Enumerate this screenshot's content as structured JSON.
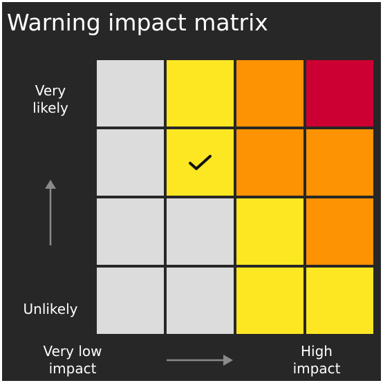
{
  "title": "Warning impact matrix",
  "axis": {
    "likelihood_top": "Very\nlikely",
    "likelihood_bottom": "Unlikely",
    "impact_left": "Very low\nimpact",
    "impact_right": "High\nimpact"
  },
  "colors": {
    "background": "#272727",
    "grey": "#dcdcdc",
    "yellow": "#fde723",
    "amber": "#fd9302",
    "red": "#cd0033",
    "arrow": "#8a8a8a"
  },
  "matrix": {
    "rows": [
      [
        "grey",
        "yellow",
        "amber",
        "red"
      ],
      [
        "grey",
        "yellow",
        "amber",
        "amber"
      ],
      [
        "grey",
        "grey",
        "yellow",
        "amber"
      ],
      [
        "grey",
        "grey",
        "yellow",
        "yellow"
      ]
    ],
    "selected": {
      "row": 1,
      "col": 1
    },
    "selected_icon": "check-icon"
  }
}
